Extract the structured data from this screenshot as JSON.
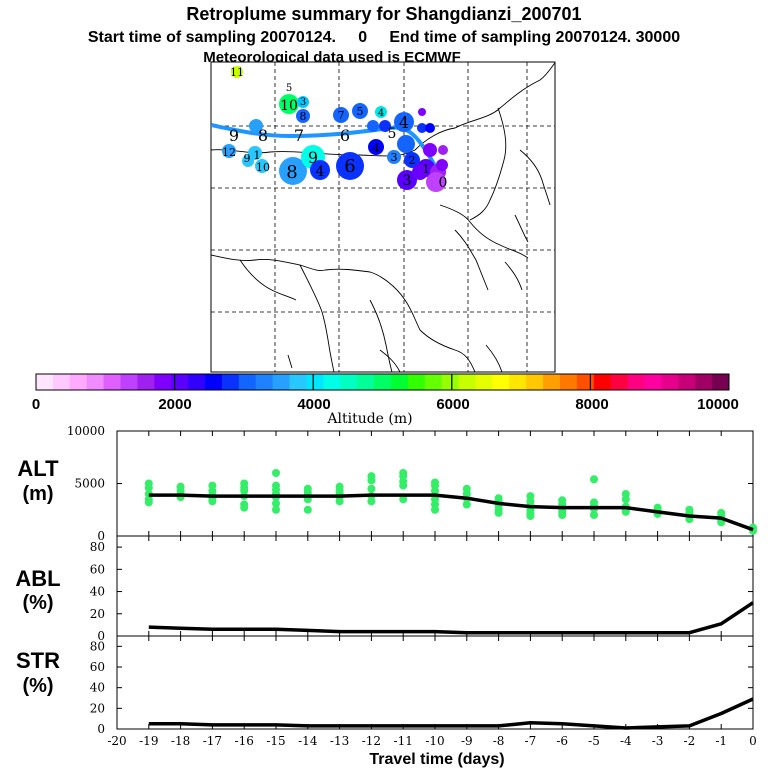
{
  "header": {
    "title": "Retroplume summary for Shangdianzi_200701",
    "sampling_line": "Start time of sampling 20070124.     0     End time of sampling 20070124. 30000",
    "met_line": "Meteorological data used is ECMWF"
  },
  "colorbar": {
    "ticks": [
      "0",
      "2000",
      "4000",
      "6000",
      "8000",
      "10000"
    ],
    "label": "Altitude (m)",
    "colors": [
      "#ffe6ff",
      "#ffc8ff",
      "#ffaaff",
      "#f08cff",
      "#e060ff",
      "#c040ff",
      "#a020f0",
      "#8000ff",
      "#5a00ff",
      "#3200ff",
      "#0000ff",
      "#0a32ff",
      "#1464ff",
      "#1e82ff",
      "#28a0ff",
      "#28c8ff",
      "#00e6ff",
      "#00ffe6",
      "#00ffc0",
      "#00ff96",
      "#00ff64",
      "#00ff32",
      "#32ff00",
      "#64ff00",
      "#96ff00",
      "#c8ff00",
      "#e6ff00",
      "#ffff00",
      "#ffe600",
      "#ffc800",
      "#ffa000",
      "#ff7800",
      "#ff5000",
      "#ff0000",
      "#ff0040",
      "#ff0080",
      "#ff00a0",
      "#e6008c",
      "#c80078",
      "#a00064",
      "#780050"
    ]
  },
  "map": {
    "plume_labels": [
      {
        "text": "11",
        "color": "#c8ff00"
      },
      {
        "text": "5",
        "color": "#00ff64"
      },
      {
        "text": "10",
        "color": "#00ff64"
      },
      {
        "text": "3",
        "color": "#00c8ff"
      },
      {
        "text": "8",
        "color": "#1464ff"
      },
      {
        "text": "7",
        "color": "#1464ff"
      },
      {
        "text": "5",
        "color": "#1464ff"
      },
      {
        "text": "4",
        "color": "#00e6e6"
      },
      {
        "text": "9",
        "color": "#28a0ff"
      },
      {
        "text": "8",
        "color": "#28a0ff"
      },
      {
        "text": "7",
        "color": "#28a0ff"
      },
      {
        "text": "6",
        "color": "#1e82ff"
      },
      {
        "text": "5",
        "color": "#0000ff"
      },
      {
        "text": "4",
        "color": "#1464ff"
      },
      {
        "text": "12",
        "color": "#28a0ff"
      },
      {
        "text": "9",
        "color": "#28c8ff"
      },
      {
        "text": "1",
        "color": "#28c8ff"
      },
      {
        "text": "10",
        "color": "#28c8ff"
      },
      {
        "text": "8",
        "color": "#28a0ff"
      },
      {
        "text": "9",
        "color": "#00ffe6"
      },
      {
        "text": "4",
        "color": "#0a32ff"
      },
      {
        "text": "6",
        "color": "#0a32ff"
      },
      {
        "text": "4",
        "color": "#0000ff"
      },
      {
        "text": "3",
        "color": "#1e82ff"
      },
      {
        "text": "2",
        "color": "#5a00ff"
      },
      {
        "text": "3",
        "color": "#5a00ff"
      },
      {
        "text": "1",
        "color": "#a020f0"
      },
      {
        "text": "0",
        "color": "#c040ff"
      }
    ]
  },
  "chart_data": [
    {
      "type": "scatter+line",
      "name": "ALT",
      "ylabel": "ALT\n(m)",
      "ylabel_lines": [
        "ALT",
        "(m)"
      ],
      "ylim": [
        0,
        10000
      ],
      "yticks": [
        "10000",
        "5000",
        "0"
      ],
      "x": [
        -19,
        -18,
        -17,
        -16,
        -15,
        -14,
        -13,
        -12,
        -11,
        -10,
        -9,
        -8,
        -7,
        -6,
        -5,
        -4,
        -3,
        -2,
        -1,
        0
      ],
      "median_line": [
        3900,
        3900,
        3800,
        3800,
        3800,
        3800,
        3800,
        3900,
        3900,
        3900,
        3600,
        3100,
        2800,
        2700,
        2700,
        2700,
        2300,
        1900,
        1700,
        600
      ],
      "points": [
        [
          -19,
          5000
        ],
        [
          -19,
          4600
        ],
        [
          -19,
          4000
        ],
        [
          -19,
          3500
        ],
        [
          -19,
          3200
        ],
        [
          -18,
          4700
        ],
        [
          -18,
          4300
        ],
        [
          -18,
          4000
        ],
        [
          -18,
          3700
        ],
        [
          -17,
          4800
        ],
        [
          -17,
          4300
        ],
        [
          -17,
          3900
        ],
        [
          -17,
          3600
        ],
        [
          -17,
          3300
        ],
        [
          -16,
          5000
        ],
        [
          -16,
          4600
        ],
        [
          -16,
          4300
        ],
        [
          -16,
          3800
        ],
        [
          -16,
          3000
        ],
        [
          -16,
          2700
        ],
        [
          -15,
          6000
        ],
        [
          -15,
          4800
        ],
        [
          -15,
          4400
        ],
        [
          -15,
          4000
        ],
        [
          -15,
          3700
        ],
        [
          -15,
          3100
        ],
        [
          -15,
          2500
        ],
        [
          -14,
          4500
        ],
        [
          -14,
          4200
        ],
        [
          -14,
          3900
        ],
        [
          -14,
          3500
        ],
        [
          -14,
          2500
        ],
        [
          -13,
          4700
        ],
        [
          -13,
          4300
        ],
        [
          -13,
          4000
        ],
        [
          -13,
          3700
        ],
        [
          -13,
          3300
        ],
        [
          -12,
          5700
        ],
        [
          -12,
          5300
        ],
        [
          -12,
          4500
        ],
        [
          -12,
          3800
        ],
        [
          -12,
          3300
        ],
        [
          -11,
          6000
        ],
        [
          -11,
          5700
        ],
        [
          -11,
          5200
        ],
        [
          -11,
          4800
        ],
        [
          -11,
          3500
        ],
        [
          -10,
          5100
        ],
        [
          -10,
          4800
        ],
        [
          -10,
          4300
        ],
        [
          -10,
          3500
        ],
        [
          -10,
          3000
        ],
        [
          -10,
          2500
        ],
        [
          -9,
          4500
        ],
        [
          -9,
          4000
        ],
        [
          -9,
          3600
        ],
        [
          -9,
          3000
        ],
        [
          -8,
          3600
        ],
        [
          -8,
          3300
        ],
        [
          -8,
          2900
        ],
        [
          -8,
          2500
        ],
        [
          -8,
          2200
        ],
        [
          -7,
          3800
        ],
        [
          -7,
          3300
        ],
        [
          -7,
          2900
        ],
        [
          -7,
          2500
        ],
        [
          -7,
          2100
        ],
        [
          -7,
          1900
        ],
        [
          -6,
          3400
        ],
        [
          -6,
          3000
        ],
        [
          -6,
          2600
        ],
        [
          -6,
          2300
        ],
        [
          -6,
          2000
        ],
        [
          -5,
          5400
        ],
        [
          -5,
          3200
        ],
        [
          -5,
          2900
        ],
        [
          -5,
          2600
        ],
        [
          -5,
          2000
        ],
        [
          -4,
          4000
        ],
        [
          -4,
          3500
        ],
        [
          -4,
          2800
        ],
        [
          -4,
          2500
        ],
        [
          -4,
          2300
        ],
        [
          -3,
          2700
        ],
        [
          -3,
          2400
        ],
        [
          -3,
          2100
        ],
        [
          -2,
          2500
        ],
        [
          -2,
          2200
        ],
        [
          -2,
          1900
        ],
        [
          -2,
          1600
        ],
        [
          -1,
          2200
        ],
        [
          -1,
          1900
        ],
        [
          -1,
          1600
        ],
        [
          -1,
          1300
        ],
        [
          0,
          800
        ],
        [
          0,
          500
        ]
      ]
    },
    {
      "type": "line",
      "name": "ABL",
      "ylabel_lines": [
        "ABL",
        "(%)"
      ],
      "ylim": [
        0,
        90
      ],
      "yticks": [
        "80",
        "60",
        "40",
        "20",
        "0"
      ],
      "x": [
        -19,
        -18,
        -17,
        -16,
        -15,
        -14,
        -13,
        -12,
        -11,
        -10,
        -9,
        -8,
        -7,
        -6,
        -5,
        -4,
        -3,
        -2,
        -1,
        0
      ],
      "values": [
        8,
        7,
        6,
        6,
        6,
        5,
        4,
        4,
        4,
        4,
        3,
        3,
        3,
        3,
        3,
        3,
        3,
        3,
        11,
        30
      ]
    },
    {
      "type": "line",
      "name": "STR",
      "ylabel_lines": [
        "STR",
        "(%)"
      ],
      "ylim": [
        0,
        90
      ],
      "yticks": [
        "80",
        "60",
        "40",
        "20",
        "0"
      ],
      "x": [
        -19,
        -18,
        -17,
        -16,
        -15,
        -14,
        -13,
        -12,
        -11,
        -10,
        -9,
        -8,
        -7,
        -6,
        -5,
        -4,
        -3,
        -2,
        -1,
        0
      ],
      "values": [
        5,
        5,
        4,
        4,
        4,
        3,
        3,
        3,
        3,
        3,
        3,
        3,
        6,
        5,
        3,
        1,
        2,
        3,
        15,
        29
      ]
    }
  ],
  "x_axis": {
    "label": "Travel time (days)",
    "ticks": [
      "-20",
      "-19",
      "-18",
      "-17",
      "-16",
      "-15",
      "-14",
      "-13",
      "-12",
      "-11",
      "-10",
      "-9",
      "-8",
      "-7",
      "-6",
      "-5",
      "-4",
      "-3",
      "-2",
      "-1",
      "0"
    ]
  }
}
